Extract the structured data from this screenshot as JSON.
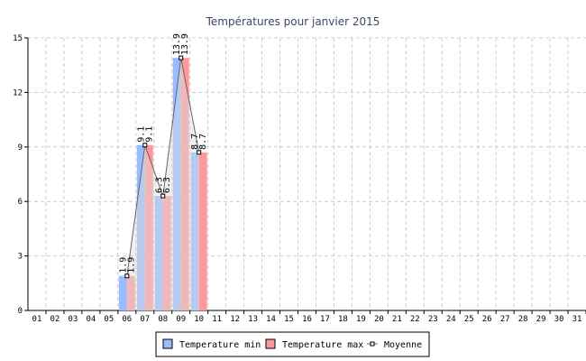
{
  "chart_data": {
    "type": "bar",
    "title": "Températures pour janvier 2015",
    "categories": [
      "01",
      "02",
      "03",
      "04",
      "05",
      "06",
      "07",
      "08",
      "09",
      "10",
      "11",
      "12",
      "13",
      "14",
      "15",
      "16",
      "17",
      "18",
      "19",
      "20",
      "21",
      "22",
      "23",
      "24",
      "25",
      "26",
      "27",
      "28",
      "29",
      "30",
      "31"
    ],
    "ylim": [
      0,
      15
    ],
    "yticks": [
      "0",
      "3",
      "6",
      "9",
      "12",
      "15"
    ],
    "grid": true,
    "legend_position": "bottom",
    "series": [
      {
        "name": "Temperature min",
        "type": "bar",
        "color": "#99bbff",
        "values": [
          null,
          null,
          null,
          null,
          null,
          1.9,
          9.1,
          6.3,
          13.9,
          8.7,
          null,
          null,
          null,
          null,
          null,
          null,
          null,
          null,
          null,
          null,
          null,
          null,
          null,
          null,
          null,
          null,
          null,
          null,
          null,
          null,
          null
        ]
      },
      {
        "name": "Temperature max",
        "type": "bar",
        "color": "#ff9999",
        "values": [
          null,
          null,
          null,
          null,
          null,
          1.9,
          9.1,
          6.3,
          13.9,
          8.7,
          null,
          null,
          null,
          null,
          null,
          null,
          null,
          null,
          null,
          null,
          null,
          null,
          null,
          null,
          null,
          null,
          null,
          null,
          null,
          null,
          null
        ]
      },
      {
        "name": "Moyenne",
        "type": "line",
        "color": "#666666",
        "values": [
          null,
          null,
          null,
          null,
          null,
          1.9,
          9.1,
          6.3,
          13.9,
          8.7,
          null,
          null,
          null,
          null,
          null,
          null,
          null,
          null,
          null,
          null,
          null,
          null,
          null,
          null,
          null,
          null,
          null,
          null,
          null,
          null,
          null
        ]
      }
    ],
    "data_labels": [
      "1.9",
      "9.1",
      "6.3",
      "13.9",
      "8.7"
    ]
  }
}
